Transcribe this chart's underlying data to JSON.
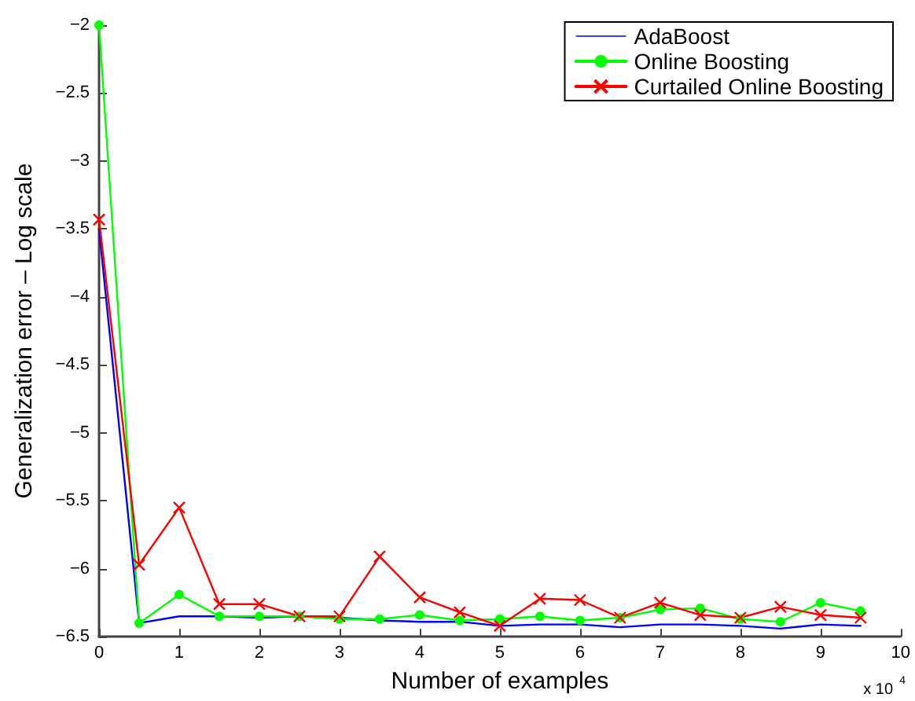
{
  "chart_data": {
    "type": "line",
    "xlabel": "Number of examples",
    "ylabel": "Generalization error – Log scale",
    "annotations": [
      "x 10$^{4}$"
    ],
    "x": [
      0,
      0.5,
      1,
      1.5,
      2,
      2.5,
      3,
      3.5,
      4,
      4.5,
      5,
      5.5,
      6,
      6.5,
      7,
      7.5,
      8,
      8.5,
      9,
      9.5
    ],
    "series": [
      {
        "name": "AdaBoost",
        "color": "#0000ff",
        "marker": "none",
        "values": [
          -3.5,
          -6.4,
          -6.35,
          -6.35,
          -6.36,
          -6.35,
          -6.36,
          -6.38,
          -6.39,
          -6.39,
          -6.42,
          -6.41,
          -6.41,
          -6.43,
          -6.41,
          -6.41,
          -6.42,
          -6.44,
          -6.41,
          -6.42
        ]
      },
      {
        "name": "Online Boosting",
        "color": "#00ff00",
        "marker": "circle",
        "values": [
          -2,
          -6.4,
          -6.19,
          -6.35,
          -6.35,
          -6.35,
          -6.37,
          -6.37,
          -6.34,
          -6.38,
          -6.37,
          -6.35,
          -6.38,
          -6.36,
          -6.3,
          -6.29,
          -6.37,
          -6.39,
          -6.25,
          -6.31
        ]
      },
      {
        "name": "Curtailed Online Boosting",
        "color": "#ff0000",
        "marker": "cross",
        "values": [
          -3.43,
          -5.97,
          -5.55,
          -6.26,
          -6.26,
          -6.35,
          -6.35,
          -5.91,
          -6.21,
          -6.32,
          -6.42,
          -6.22,
          -6.23,
          -6.36,
          -6.25,
          -6.34,
          -6.36,
          -6.28,
          -6.34,
          -6.36
        ]
      }
    ],
    "xlim": [
      0,
      10
    ],
    "xticks": [
      0,
      1,
      2,
      3,
      4,
      5,
      6,
      7,
      8,
      9,
      10
    ],
    "ylim": [
      -6.5,
      -2
    ],
    "yticks": [
      -6.5,
      -6,
      -5.5,
      -5,
      -4.5,
      -4,
      -3.5,
      -3,
      -2.5,
      -2
    ],
    "grid": false,
    "legend": "top right"
  }
}
